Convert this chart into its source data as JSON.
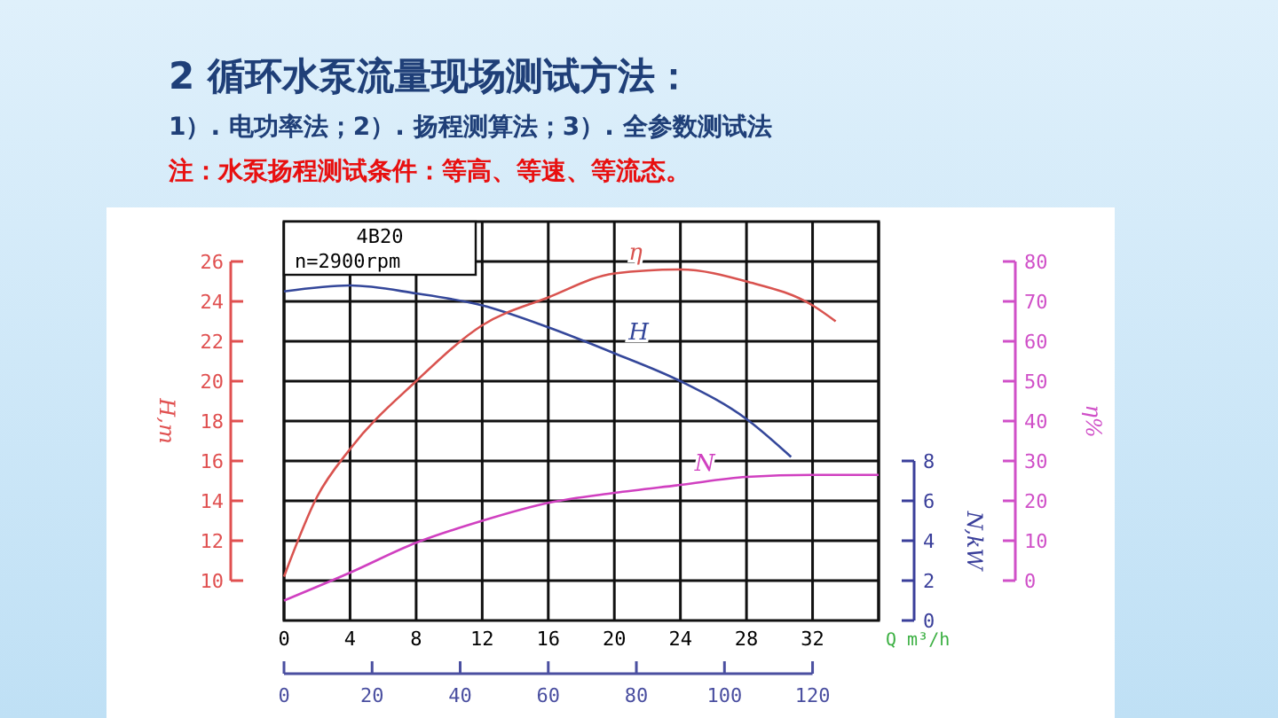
{
  "chart_data": {
    "type": "line",
    "title": "2 循环水泵流量现场测试方法：",
    "subtitle": "1）. 电功率法；2）. 扬程测算法；3）. 全参数测试法",
    "annotations": [
      "注：水泵扬程测试条件：等高、等速、等流态。",
      "4B20",
      "n=2900rpm"
    ],
    "xlabel": "Q m³/h",
    "ylabel": "H,m",
    "y2label": "η%",
    "y3label": "N,kW",
    "xlim": [
      0,
      36
    ],
    "xticks": [
      0,
      4,
      8,
      12,
      16,
      20,
      24,
      28,
      32,
      {
        "value": 36,
        "label": null
      }
    ],
    "x2lim": [
      0,
      135
    ],
    "x2ticks": [
      0,
      20,
      40,
      60,
      80,
      100,
      120
    ],
    "ylim": [
      8,
      28
    ],
    "yticks": [
      10,
      12,
      14,
      16,
      18,
      20,
      22,
      24,
      26
    ],
    "y2lim": [
      -10,
      90
    ],
    "y2ticks": [
      0,
      10,
      20,
      30,
      40,
      50,
      60,
      70,
      80
    ],
    "y3lim": [
      0,
      20
    ],
    "y3ticks": [
      0,
      2,
      4,
      6,
      8
    ],
    "grid": true,
    "series": [
      {
        "name": "H",
        "color": "#34479a",
        "x": [
          0,
          4,
          8,
          12,
          16,
          20,
          24,
          28,
          30.7
        ],
        "values": [
          24.5,
          24.8,
          24.4,
          23.8,
          22.7,
          21.4,
          20.0,
          18.1,
          16.2
        ]
      },
      {
        "name": "η",
        "color": "#d9534f",
        "axis": "y2",
        "x": [
          0,
          2,
          4,
          8,
          12,
          16,
          20,
          24,
          28,
          32,
          33.4
        ],
        "values": [
          1,
          21,
          33,
          50,
          64,
          71,
          77,
          78,
          75,
          69,
          65
        ]
      },
      {
        "name": "N",
        "color": "#d040c0",
        "axis": "y3",
        "x": [
          0,
          4,
          8,
          12,
          16,
          20,
          24,
          28,
          32,
          36
        ],
        "values": [
          1.0,
          2.4,
          3.9,
          5.0,
          5.9,
          6.4,
          6.8,
          7.2,
          7.3,
          7.3
        ]
      }
    ]
  }
}
